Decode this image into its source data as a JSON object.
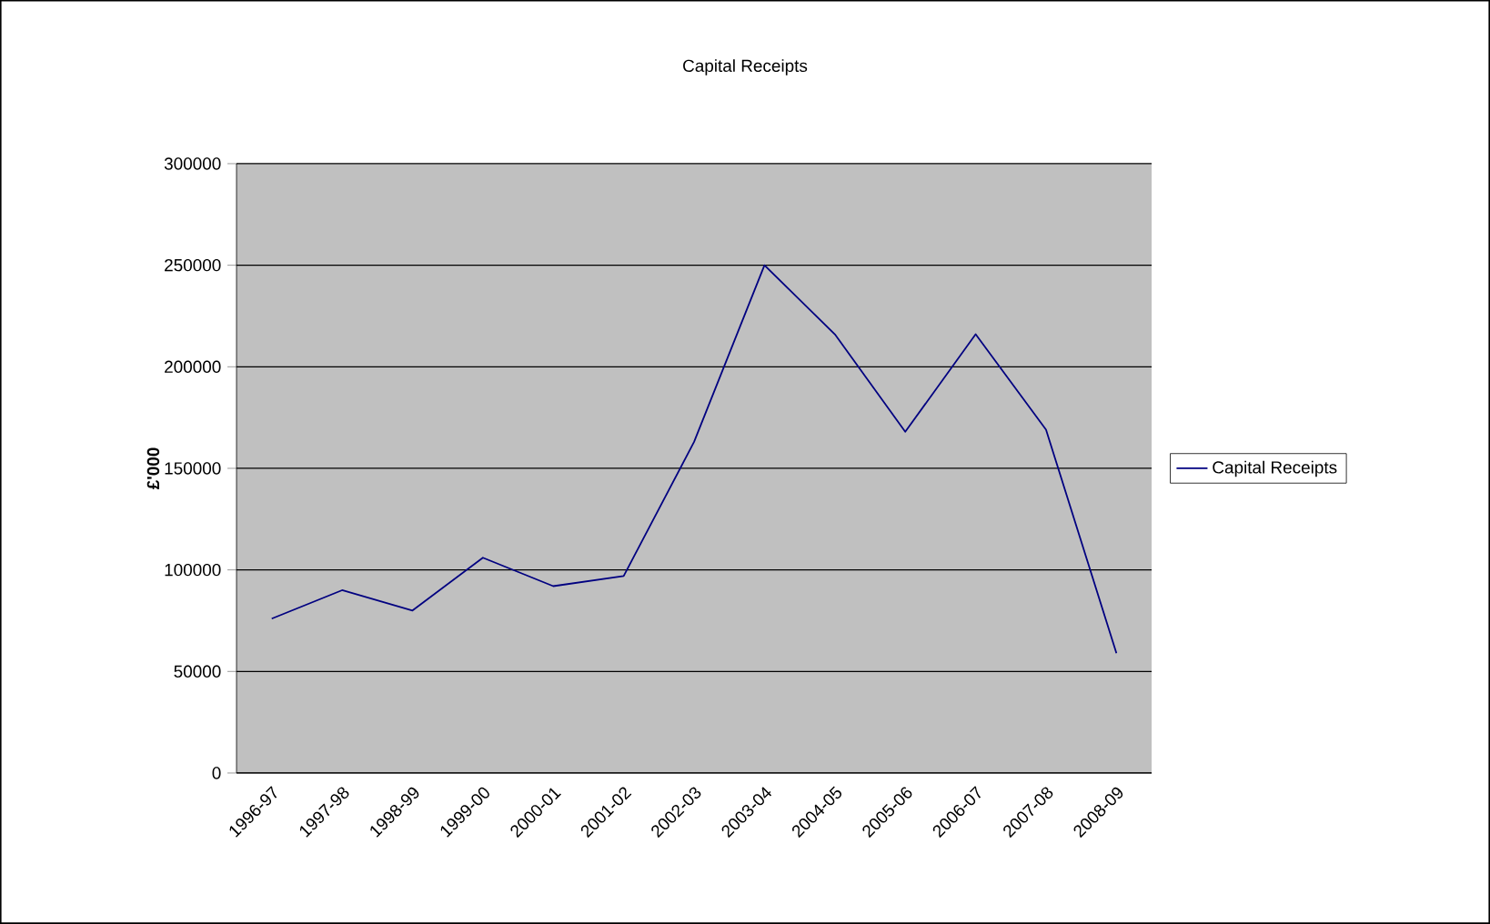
{
  "chart_data": {
    "type": "line",
    "title": "Capital Receipts",
    "ylabel": "£'000",
    "categories": [
      "1996-97",
      "1997-98",
      "1998-99",
      "1999-00",
      "2000-01",
      "2001-02",
      "2002-03",
      "2003-04",
      "2004-05",
      "2005-06",
      "2006-07",
      "2007-08",
      "2008-09"
    ],
    "series": [
      {
        "name": "Capital Receipts",
        "color": "#000080",
        "values": [
          76000,
          90000,
          80000,
          106000,
          92000,
          97000,
          163000,
          250000,
          216000,
          168000,
          216000,
          169000,
          59000
        ]
      }
    ],
    "ylim": [
      0,
      300000
    ],
    "yticks": [
      0,
      50000,
      100000,
      150000,
      200000,
      250000,
      300000
    ],
    "grid": "y",
    "legend": "right",
    "marker": "none",
    "line_style": "solid"
  }
}
